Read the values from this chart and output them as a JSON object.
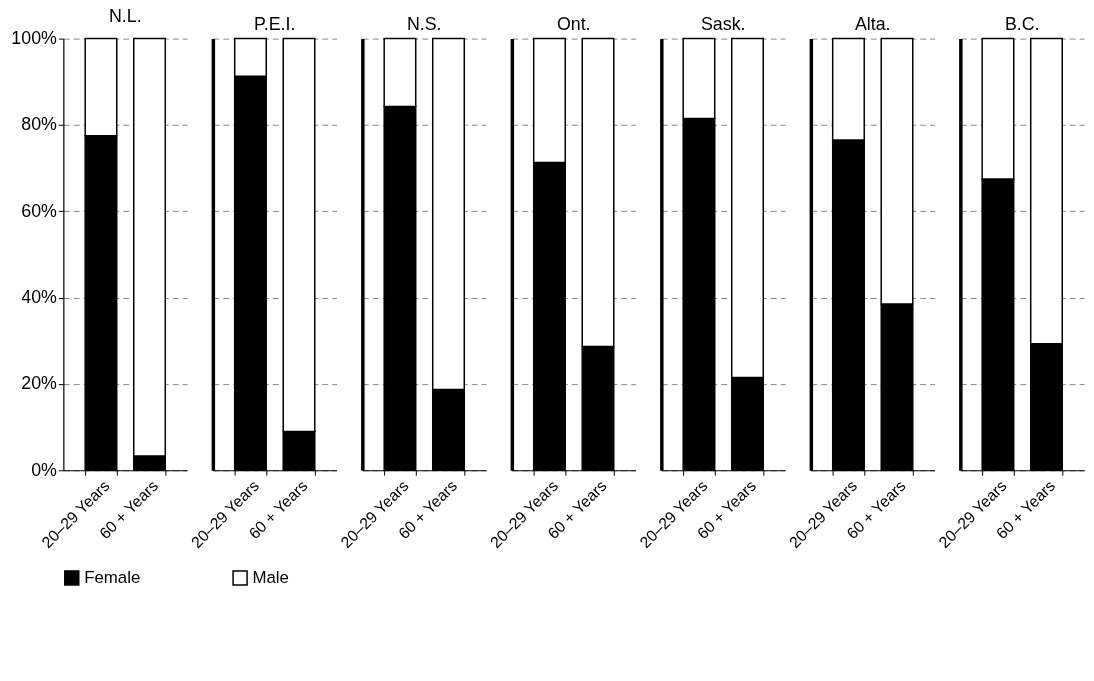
{
  "chart_data": [
    {
      "type": "bar",
      "stacked": true,
      "title": "N.L.",
      "categories": [
        "20–29 Years",
        "60 + Years"
      ],
      "series": [
        {
          "name": "Female",
          "color": "#000000",
          "values": [
            77.5,
            3.3
          ]
        },
        {
          "name": "Male",
          "color": "#ffffff",
          "values": [
            22.5,
            96.7
          ]
        }
      ],
      "ylim": [
        0,
        100
      ],
      "yticks": [
        {
          "value": 0,
          "label": "0%"
        },
        {
          "value": 20,
          "label": "20%"
        },
        {
          "value": 40,
          "label": "40%"
        },
        {
          "value": 60,
          "label": "60%"
        },
        {
          "value": 80,
          "label": "80%"
        },
        {
          "value": 100,
          "label": "100%"
        }
      ],
      "grid": "y",
      "legend": "bottom"
    },
    {
      "type": "bar",
      "stacked": true,
      "title": "P.E.I.",
      "categories": [
        "20–29 Years",
        "60 + Years"
      ],
      "series": [
        {
          "name": "Female",
          "color": "#000000",
          "values": [
            91.3,
            9
          ]
        },
        {
          "name": "Male",
          "color": "#ffffff",
          "values": [
            8.7,
            91
          ]
        }
      ],
      "ylim": [
        0,
        100
      ],
      "yticks": [
        0,
        20,
        40,
        60,
        80,
        100
      ],
      "grid": "y",
      "legend": "bottom",
      "tick_labels": "x"
    },
    {
      "type": "bar",
      "stacked": true,
      "title": "N.S.",
      "categories": [
        "20–29 Years",
        "60 + Years"
      ],
      "series": [
        {
          "name": "Female",
          "color": "#000000",
          "values": [
            84.3,
            18.7
          ]
        },
        {
          "name": "Male",
          "color": "#ffffff",
          "values": [
            15.7,
            81.3
          ]
        }
      ],
      "ylim": [
        0,
        100
      ],
      "yticks": [
        0,
        20,
        40,
        60,
        80,
        100
      ],
      "grid": "y",
      "legend": "bottom",
      "tick_labels": "x"
    },
    {
      "type": "bar",
      "stacked": true,
      "title": "Ont.",
      "categories": [
        "20–29 Years",
        "60 + Years"
      ],
      "series": [
        {
          "name": "Female",
          "color": "#000000",
          "values": [
            71.3,
            28.7
          ]
        },
        {
          "name": "Male",
          "color": "#ffffff",
          "values": [
            28.7,
            71.3
          ]
        }
      ],
      "ylim": [
        0,
        100
      ],
      "yticks": [
        0,
        20,
        40,
        60,
        80,
        100
      ],
      "grid": "y",
      "legend": "bottom",
      "tick_labels": "x"
    },
    {
      "type": "bar",
      "stacked": true,
      "title": "Sask.",
      "categories": [
        "20–29 Years",
        "60 + Years"
      ],
      "series": [
        {
          "name": "Female",
          "color": "#000000",
          "values": [
            81.5,
            21.5
          ]
        },
        {
          "name": "Male",
          "color": "#ffffff",
          "values": [
            18.5,
            78.5
          ]
        }
      ],
      "ylim": [
        0,
        100
      ],
      "yticks": [
        0,
        20,
        40,
        60,
        80,
        100
      ],
      "grid": "y",
      "legend": "bottom",
      "tick_labels": "x"
    },
    {
      "type": "bar",
      "stacked": true,
      "title": "Alta.",
      "categories": [
        "20–29 Years",
        "60 + Years"
      ],
      "series": [
        {
          "name": "Female",
          "color": "#000000",
          "values": [
            76.5,
            38.5
          ]
        },
        {
          "name": "Male",
          "color": "#ffffff",
          "values": [
            23.5,
            61.5
          ]
        }
      ],
      "ylim": [
        0,
        100
      ],
      "yticks": [
        0,
        20,
        40,
        60,
        80,
        100
      ],
      "grid": "y",
      "legend": "bottom",
      "tick_labels": "x"
    },
    {
      "type": "bar",
      "stacked": true,
      "title": "B.C.",
      "categories": [
        "20–29 Years",
        "60 + Years"
      ],
      "series": [
        {
          "name": "Female",
          "color": "#000000",
          "values": [
            67.5,
            29.3
          ]
        },
        {
          "name": "Male",
          "color": "#ffffff",
          "values": [
            32.5,
            70.7
          ]
        }
      ],
      "ylim": [
        0,
        100
      ],
      "yticks": [
        0,
        20,
        40,
        60,
        80,
        100
      ],
      "grid": "y",
      "legend": "bottom",
      "tick_labels": "x"
    }
  ]
}
